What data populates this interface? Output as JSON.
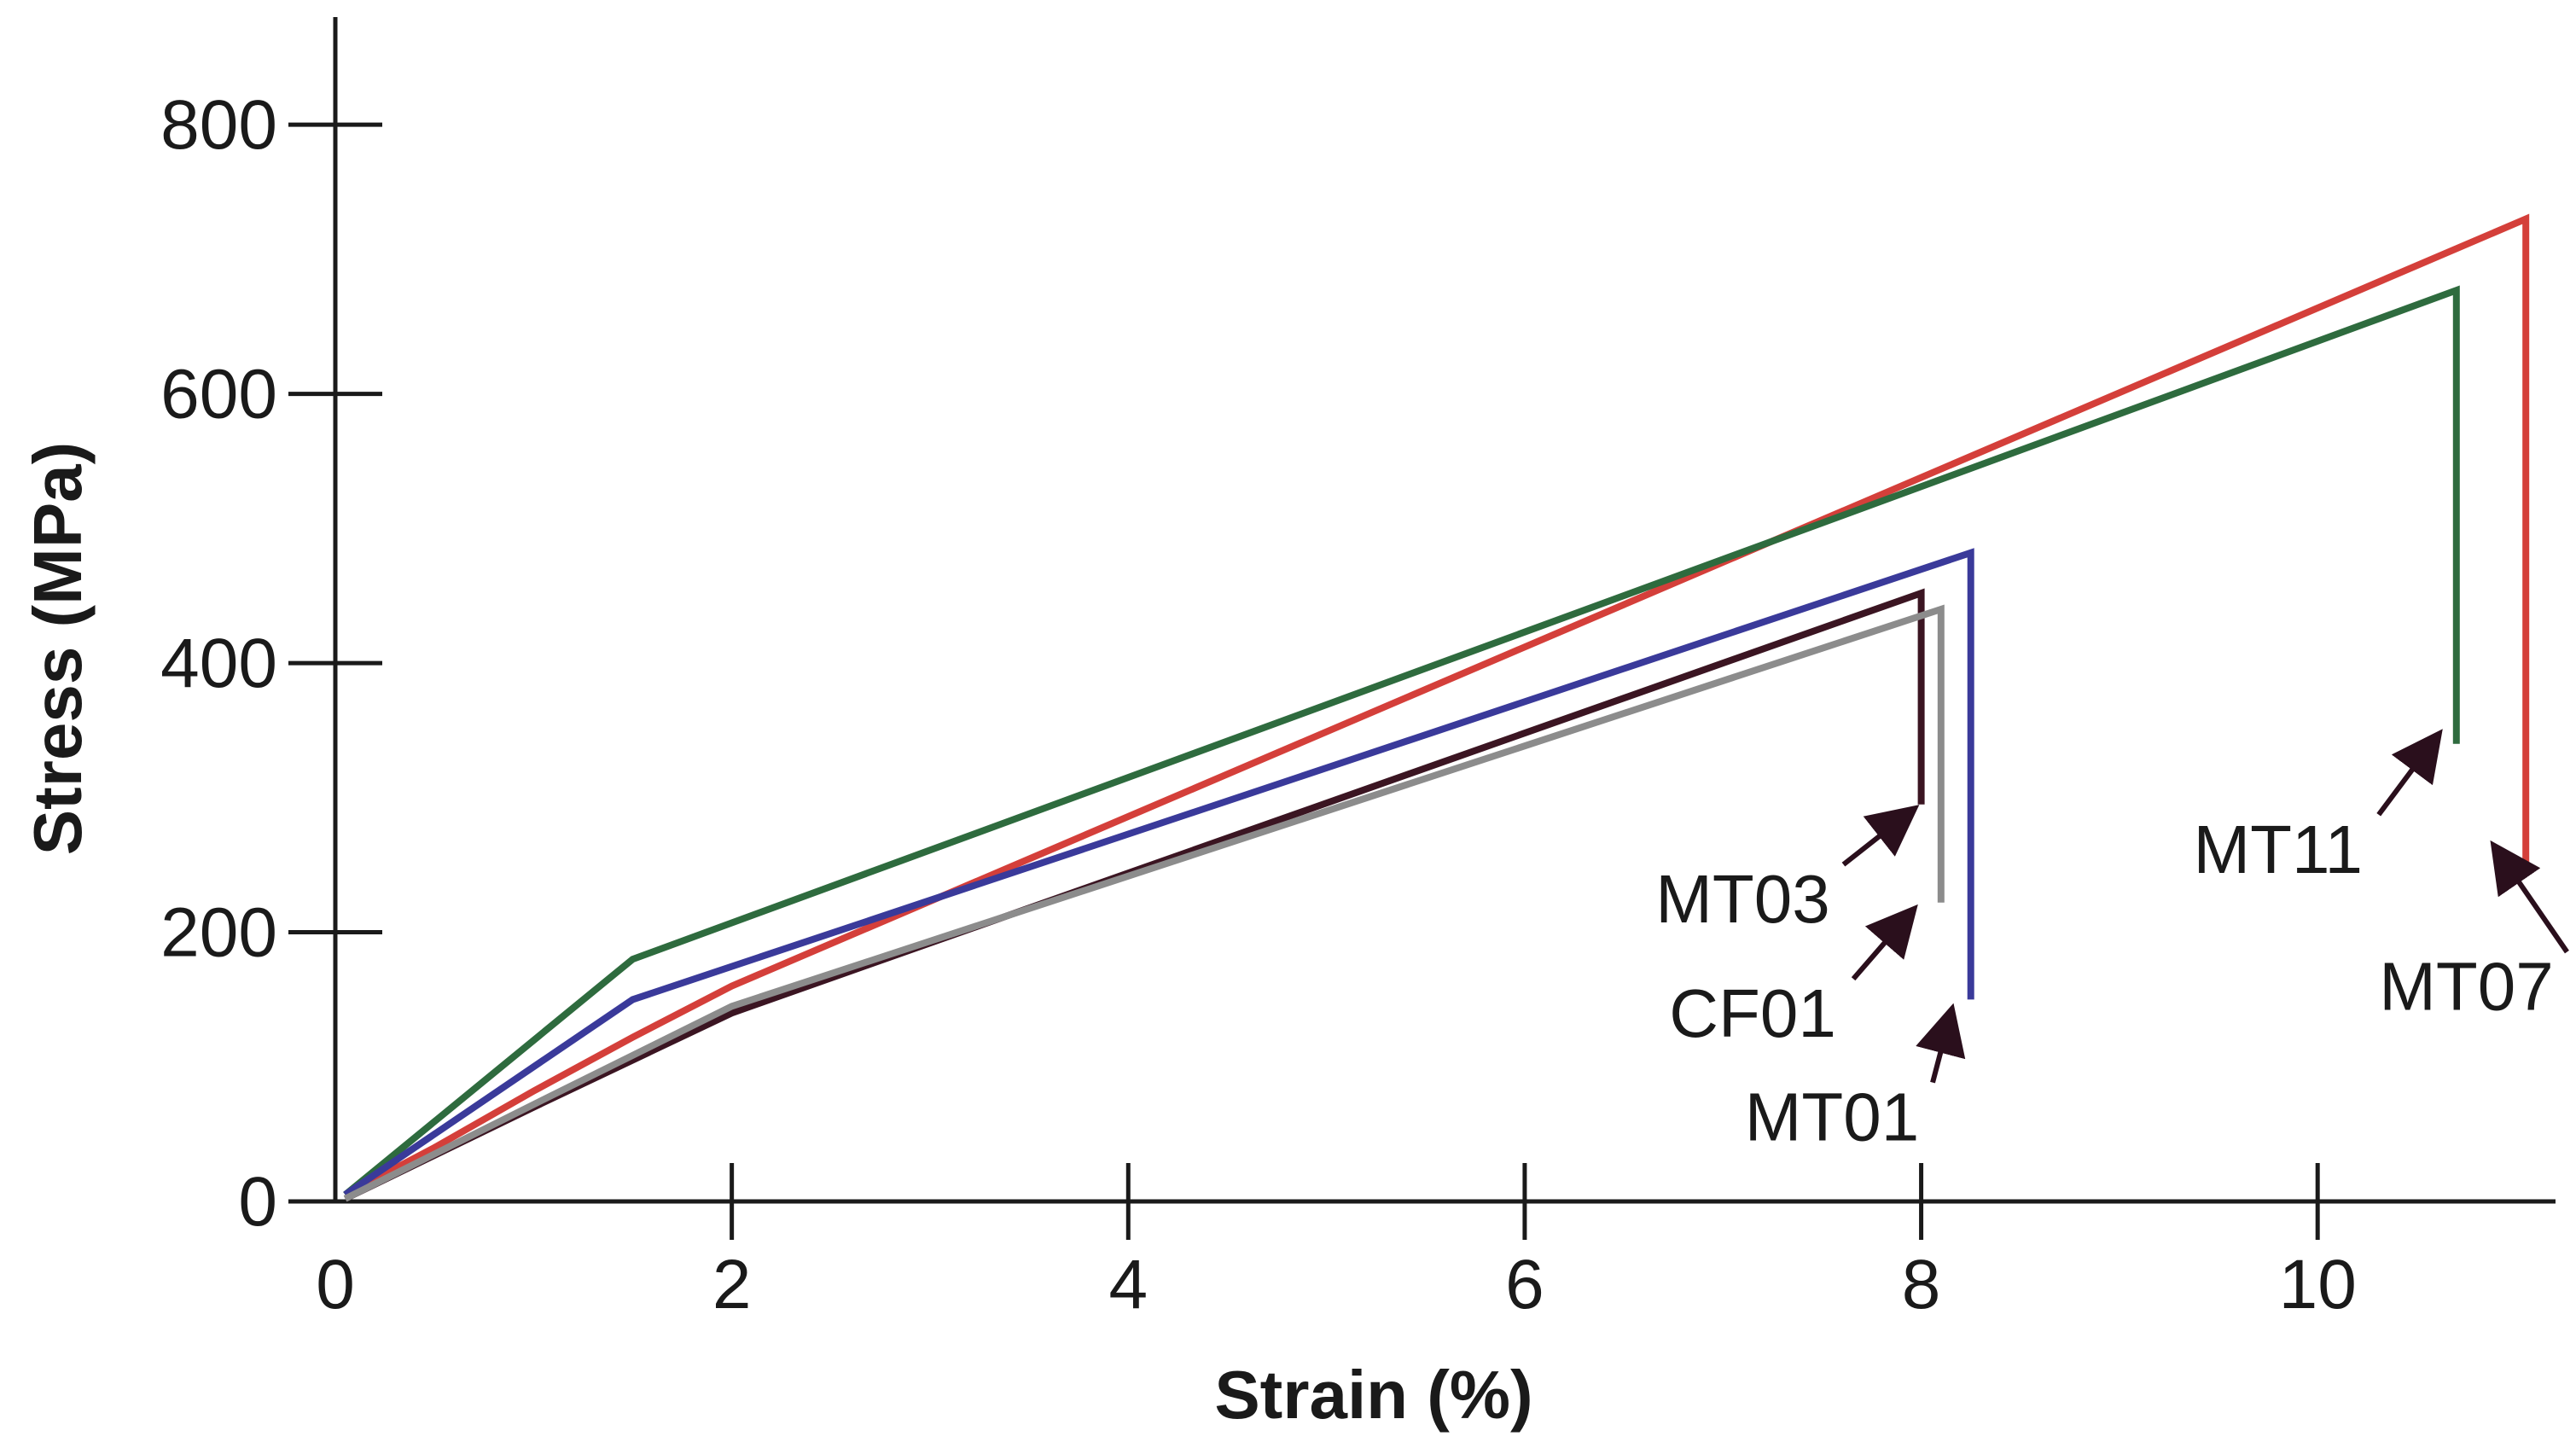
{
  "chart_data": {
    "type": "line",
    "title": "",
    "xlabel": "Strain (%)",
    "ylabel": "Stress (MPa)",
    "xlim": [
      0,
      11.2
    ],
    "ylim": [
      0,
      880
    ],
    "xticks": [
      0,
      2,
      4,
      6,
      8,
      10
    ],
    "yticks": [
      0,
      200,
      400,
      600,
      800
    ],
    "grid": false,
    "legend": "annotated labels with arrows",
    "series": [
      {
        "name": "MT07",
        "color": "#d43f3a",
        "x": [
          0.05,
          0.5,
          1.0,
          1.5,
          2.0,
          11.05,
          11.05
        ],
        "y": [
          5,
          40,
          82,
          122,
          160,
          730,
          242
        ],
        "arrow_tip": [
          10.9,
          262
        ],
        "label_at": [
          10.75,
          160
        ]
      },
      {
        "name": "MT11",
        "color": "#2e6b3e",
        "x": [
          0.05,
          1.5,
          10.7,
          10.7
        ],
        "y": [
          5,
          180,
          677,
          340
        ],
        "arrow_tip": [
          10.6,
          345
        ],
        "label_at": [
          9.8,
          262
        ]
      },
      {
        "name": "MT01",
        "color": "#3a3a9a",
        "x": [
          0.05,
          1.5,
          8.25,
          8.25
        ],
        "y": [
          5,
          150,
          482,
          150
        ],
        "arrow_tip": [
          8.15,
          140
        ],
        "label_at": [
          7.55,
          63
        ]
      },
      {
        "name": "MT03",
        "color": "#3b1522",
        "x": [
          0.05,
          1.0,
          2.0,
          8.0,
          8.0
        ],
        "y": [
          2,
          70,
          140,
          452,
          295
        ],
        "arrow_tip": [
          7.95,
          290
        ],
        "label_at": [
          7.1,
          225
        ]
      },
      {
        "name": "CF01",
        "color": "#8c8c8c",
        "x": [
          0.05,
          1.0,
          2.0,
          8.1,
          8.1
        ],
        "y": [
          2,
          72,
          145,
          440,
          222
        ],
        "arrow_tip": [
          7.95,
          215
        ],
        "label_at": [
          7.15,
          140
        ]
      }
    ]
  }
}
